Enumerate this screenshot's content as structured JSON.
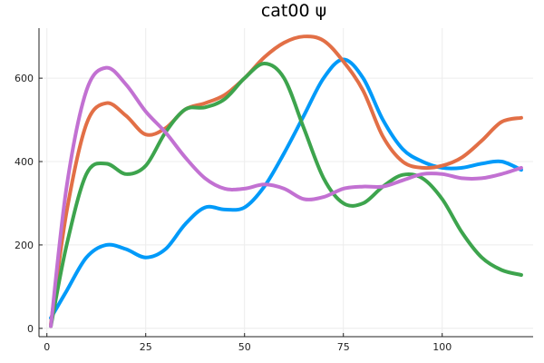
{
  "chart_data": {
    "type": "line",
    "title": "cat00 ψ",
    "xlabel": "",
    "ylabel": "",
    "xlim": [
      -2,
      123
    ],
    "ylim": [
      -20,
      720
    ],
    "x_ticks": [
      0,
      25,
      50,
      75,
      100
    ],
    "y_ticks": [
      0,
      200,
      400,
      600
    ],
    "grid": true,
    "legend": "none",
    "series": [
      {
        "color": "#009af9",
        "points": [
          [
            1,
            25
          ],
          [
            5,
            90
          ],
          [
            10,
            170
          ],
          [
            15,
            200
          ],
          [
            20,
            190
          ],
          [
            25,
            170
          ],
          [
            30,
            190
          ],
          [
            35,
            250
          ],
          [
            40,
            290
          ],
          [
            45,
            285
          ],
          [
            50,
            290
          ],
          [
            55,
            340
          ],
          [
            60,
            420
          ],
          [
            65,
            510
          ],
          [
            70,
            600
          ],
          [
            75,
            645
          ],
          [
            80,
            600
          ],
          [
            85,
            500
          ],
          [
            90,
            430
          ],
          [
            95,
            400
          ],
          [
            100,
            385
          ],
          [
            105,
            385
          ],
          [
            110,
            395
          ],
          [
            115,
            400
          ],
          [
            120,
            380
          ]
        ]
      },
      {
        "color": "#e26f46",
        "points": [
          [
            1,
            10
          ],
          [
            5,
            280
          ],
          [
            10,
            490
          ],
          [
            15,
            540
          ],
          [
            20,
            510
          ],
          [
            25,
            465
          ],
          [
            30,
            480
          ],
          [
            35,
            525
          ],
          [
            40,
            540
          ],
          [
            45,
            560
          ],
          [
            50,
            600
          ],
          [
            55,
            650
          ],
          [
            60,
            685
          ],
          [
            65,
            700
          ],
          [
            70,
            690
          ],
          [
            75,
            640
          ],
          [
            80,
            570
          ],
          [
            85,
            460
          ],
          [
            90,
            400
          ],
          [
            95,
            385
          ],
          [
            100,
            390
          ],
          [
            105,
            410
          ],
          [
            110,
            450
          ],
          [
            115,
            495
          ],
          [
            120,
            505
          ]
        ]
      },
      {
        "color": "#3da44d",
        "points": [
          [
            1,
            5
          ],
          [
            5,
            200
          ],
          [
            10,
            370
          ],
          [
            15,
            395
          ],
          [
            20,
            370
          ],
          [
            25,
            390
          ],
          [
            30,
            470
          ],
          [
            35,
            525
          ],
          [
            40,
            530
          ],
          [
            45,
            550
          ],
          [
            50,
            600
          ],
          [
            55,
            635
          ],
          [
            60,
            600
          ],
          [
            65,
            480
          ],
          [
            70,
            360
          ],
          [
            75,
            300
          ],
          [
            80,
            300
          ],
          [
            85,
            340
          ],
          [
            90,
            368
          ],
          [
            95,
            360
          ],
          [
            100,
            310
          ],
          [
            105,
            230
          ],
          [
            110,
            170
          ],
          [
            115,
            140
          ],
          [
            120,
            128
          ]
        ]
      },
      {
        "color": "#c271d2",
        "points": [
          [
            1,
            5
          ],
          [
            5,
            340
          ],
          [
            10,
            570
          ],
          [
            15,
            625
          ],
          [
            20,
            585
          ],
          [
            25,
            520
          ],
          [
            30,
            470
          ],
          [
            35,
            410
          ],
          [
            40,
            360
          ],
          [
            45,
            335
          ],
          [
            50,
            335
          ],
          [
            55,
            345
          ],
          [
            60,
            335
          ],
          [
            65,
            310
          ],
          [
            70,
            315
          ],
          [
            75,
            335
          ],
          [
            80,
            340
          ],
          [
            85,
            340
          ],
          [
            90,
            355
          ],
          [
            95,
            370
          ],
          [
            100,
            370
          ],
          [
            105,
            360
          ],
          [
            110,
            360
          ],
          [
            115,
            370
          ],
          [
            120,
            385
          ]
        ]
      }
    ]
  }
}
